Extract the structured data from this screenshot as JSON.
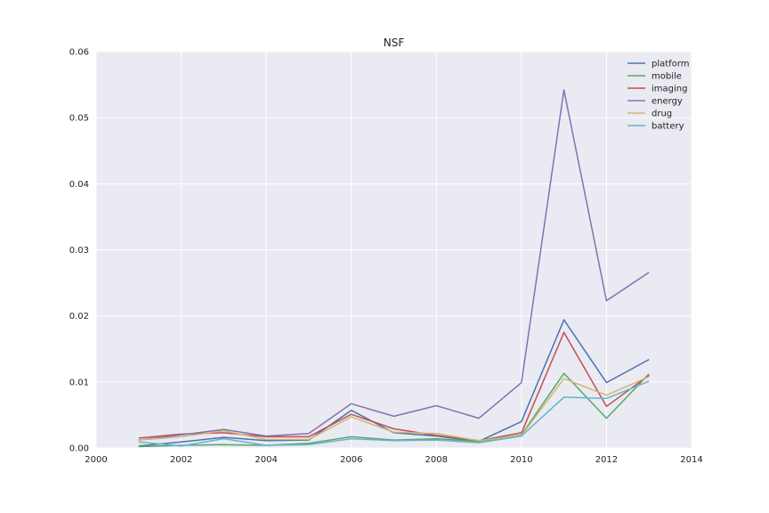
{
  "chart_data": {
    "type": "line",
    "title": "NSF",
    "xlabel": "",
    "ylabel": "",
    "xlim": [
      2000,
      2014
    ],
    "ylim": [
      0,
      0.06
    ],
    "x_ticks": [
      "2000",
      "2002",
      "2004",
      "2006",
      "2008",
      "2010",
      "2012",
      "2014"
    ],
    "y_ticks": [
      "0.00",
      "0.01",
      "0.02",
      "0.03",
      "0.04",
      "0.05",
      "0.06"
    ],
    "grid": true,
    "background": "#EAEAF2",
    "legend_position": "top-right",
    "x": [
      2001,
      2002,
      2003,
      2004,
      2005,
      2006,
      2007,
      2008,
      2009,
      2010,
      2011,
      2012,
      2013
    ],
    "series": [
      {
        "name": "platform",
        "color": "#4C72B0",
        "values": [
          0.0003,
          0.0009,
          0.0016,
          0.0011,
          0.0012,
          0.0057,
          0.0023,
          0.0018,
          0.001,
          0.004,
          0.0194,
          0.0099,
          0.0134
        ]
      },
      {
        "name": "mobile",
        "color": "#55A868",
        "values": [
          0.0002,
          0.0004,
          0.0005,
          0.0004,
          0.0007,
          0.0017,
          0.0012,
          0.0014,
          0.001,
          0.002,
          0.0113,
          0.0045,
          0.0112
        ]
      },
      {
        "name": "imaging",
        "color": "#C44E52",
        "values": [
          0.0015,
          0.0021,
          0.0023,
          0.0017,
          0.0017,
          0.0051,
          0.0029,
          0.0019,
          0.0011,
          0.0023,
          0.0175,
          0.0063,
          0.011
        ]
      },
      {
        "name": "energy",
        "color": "#8172B2",
        "values": [
          0.0012,
          0.002,
          0.0028,
          0.0018,
          0.0022,
          0.0067,
          0.0048,
          0.0064,
          0.0045,
          0.0099,
          0.0542,
          0.0223,
          0.0266
        ]
      },
      {
        "name": "drug",
        "color": "#CCB974",
        "values": [
          0.0012,
          0.0017,
          0.0026,
          0.0013,
          0.0013,
          0.0047,
          0.0024,
          0.0022,
          0.0011,
          0.0019,
          0.0105,
          0.008,
          0.0108
        ]
      },
      {
        "name": "battery",
        "color": "#64B5CD",
        "values": [
          0.0009,
          0.0003,
          0.0014,
          0.0004,
          0.0005,
          0.0014,
          0.0011,
          0.0012,
          0.0008,
          0.0018,
          0.0077,
          0.0075,
          0.0101
        ]
      }
    ]
  }
}
